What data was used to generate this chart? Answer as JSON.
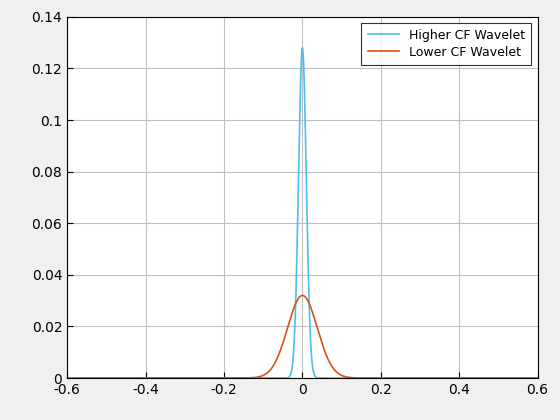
{
  "title": "",
  "xlim": [
    -0.6,
    0.6
  ],
  "ylim": [
    0,
    0.14
  ],
  "yticks": [
    0,
    0.02,
    0.04,
    0.06,
    0.08,
    0.1,
    0.12,
    0.14
  ],
  "xticks": [
    -0.6,
    -0.4,
    -0.2,
    0,
    0.2,
    0.4,
    0.6
  ],
  "higher_cf_color": "#4DBEEE",
  "lower_cf_color": "#D95319",
  "higher_cf_label": "Higher CF Wavelet",
  "lower_cf_label": "Lower CF Wavelet",
  "higher_cf_sigma": 0.01,
  "lower_cf_sigma": 0.038,
  "higher_cf_amplitude": 0.128,
  "lower_cf_amplitude": 0.032,
  "figure_bg": "#F0F0F0",
  "axes_bg": "#FFFFFF",
  "grid_color": "#C0C0C0",
  "legend_loc": "upper right"
}
